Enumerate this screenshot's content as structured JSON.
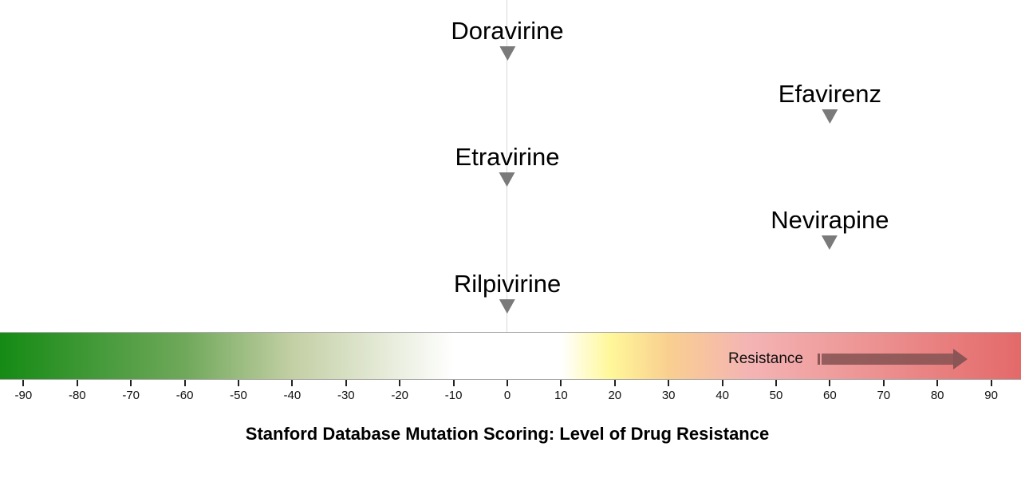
{
  "chart_data": {
    "type": "scatter",
    "title": "Stanford Database Mutation Scoring: Level of Drug Resistance",
    "xlabel": "Stanford Database Mutation Scoring: Level of Drug Resistance",
    "ylabel": "",
    "xlim": [
      -95,
      95
    ],
    "x_ticks": [
      -90,
      -80,
      -70,
      -60,
      -50,
      -40,
      -30,
      -20,
      -10,
      0,
      10,
      20,
      30,
      40,
      50,
      60,
      70,
      80,
      90
    ],
    "grid": false,
    "reference_line_x": 0,
    "points": [
      {
        "drug": "Doravirine",
        "score": 0
      },
      {
        "drug": "Efavirenz",
        "score": 60
      },
      {
        "drug": "Etravirine",
        "score": 0
      },
      {
        "drug": "Nevirapine",
        "score": 60
      },
      {
        "drug": "Rilpivirine",
        "score": 0
      }
    ],
    "color_scale": {
      "stops": [
        {
          "value": -95,
          "color": "#138a13"
        },
        {
          "value": -60,
          "color": "#6fa85a"
        },
        {
          "value": -40,
          "color": "#c3cfa4"
        },
        {
          "value": -10,
          "color": "#ffffff"
        },
        {
          "value": 10,
          "color": "#ffffff"
        },
        {
          "value": 19,
          "color": "#fff89a"
        },
        {
          "value": 30,
          "color": "#f9cf90"
        },
        {
          "value": 45,
          "color": "#f4b4b4"
        },
        {
          "value": 95,
          "color": "#e46a6a"
        }
      ]
    },
    "annotation": {
      "text": "Resistance",
      "arrow_direction": "right"
    }
  },
  "labels": {
    "resistance": "Resistance",
    "title": "Stanford Database Mutation Scoring: Level of Drug Resistance"
  },
  "colors": {
    "marker": "#7a7a7a",
    "arrow": "#8b5555"
  }
}
